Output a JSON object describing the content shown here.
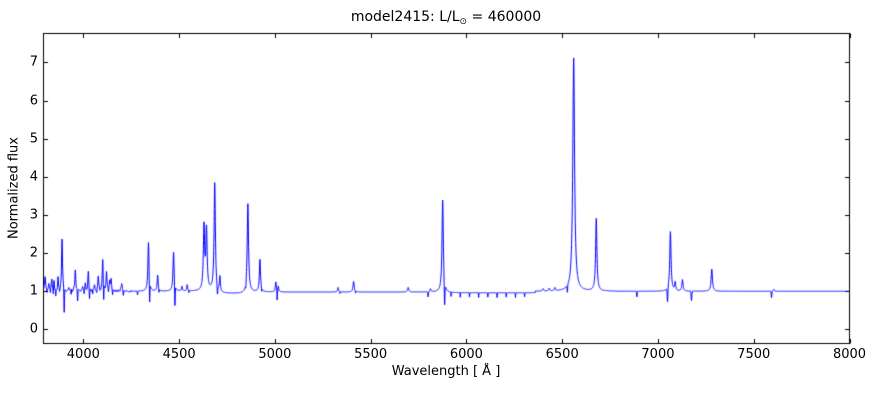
{
  "figure": {
    "title_text": "model2415: L/L",
    "title_sub": "⊙",
    "title_suffix": " = 460000"
  },
  "chart_data": {
    "type": "line",
    "title": "model2415: L/L⊙ = 460000",
    "xlabel": "Wavelength [ Å ]",
    "ylabel": "Normalized flux",
    "xlim": [
      3792,
      8000
    ],
    "ylim": [
      -0.37,
      7.76
    ],
    "xticks": [
      4000,
      4500,
      5000,
      5500,
      6000,
      6500,
      7000,
      7500,
      8000
    ],
    "yticks": [
      0,
      1,
      2,
      3,
      4,
      5,
      6,
      7
    ],
    "line_color": "#0000ff",
    "axis_color": "#000000",
    "background": "#ffffff",
    "continuum_level": 1.0,
    "baseline_segments": [
      [
        3792,
        4692,
        1.0
      ],
      [
        4692,
        4850,
        0.94
      ],
      [
        4850,
        5880,
        0.98
      ],
      [
        5880,
        6360,
        0.96
      ],
      [
        6360,
        8000,
        1.0
      ]
    ],
    "emission_lines": [
      [
        3800,
        1.4,
        3.0
      ],
      [
        3820,
        1.14,
        2.5
      ],
      [
        3835,
        1.28,
        2.5
      ],
      [
        3847,
        1.22,
        2.5
      ],
      [
        3868,
        1.32,
        2.5
      ],
      [
        3889,
        2.36,
        3.0
      ],
      [
        3924,
        1.12,
        2.5
      ],
      [
        3958,
        1.56,
        3.0
      ],
      [
        3996,
        1.14,
        2.5
      ],
      [
        4010,
        1.16,
        2.5
      ],
      [
        4026,
        1.52,
        3.0
      ],
      [
        4058,
        1.12,
        2.5
      ],
      [
        4078,
        1.36,
        2.5
      ],
      [
        4101,
        1.82,
        3.0
      ],
      [
        4121,
        1.46,
        2.5
      ],
      [
        4137,
        1.26,
        2.5
      ],
      [
        4145,
        1.28,
        2.5
      ],
      [
        4200,
        1.22,
        3.0
      ],
      [
        4340,
        2.28,
        3.5
      ],
      [
        4388,
        1.42,
        3.0
      ],
      [
        4471,
        2.02,
        3.5
      ],
      [
        4515,
        1.12,
        2.5
      ],
      [
        4542,
        1.16,
        2.5
      ],
      [
        4630,
        2.68,
        4.0
      ],
      [
        4643,
        2.58,
        4.0
      ],
      [
        4686,
        3.82,
        4.0
      ],
      [
        4713,
        1.4,
        3.0
      ],
      [
        4859,
        3.32,
        4.0
      ],
      [
        4922,
        1.85,
        3.5
      ],
      [
        5005,
        1.26,
        3.0
      ],
      [
        5018,
        1.14,
        2.5
      ],
      [
        5330,
        1.12,
        3.0
      ],
      [
        5411,
        1.28,
        3.5
      ],
      [
        5696,
        1.12,
        3.5
      ],
      [
        5812,
        1.08,
        3.0
      ],
      [
        5876,
        3.42,
        4.0
      ],
      [
        6400,
        1.06,
        3.0
      ],
      [
        6432,
        1.07,
        3.0
      ],
      [
        6462,
        1.08,
        3.0
      ],
      [
        6560,
        7.13,
        5.5
      ],
      [
        6678,
        2.9,
        4.0
      ],
      [
        7065,
        2.56,
        4.0
      ],
      [
        7090,
        1.22,
        3.0
      ],
      [
        7128,
        1.3,
        3.5
      ],
      [
        7281,
        1.58,
        4.0
      ],
      [
        7605,
        1.05,
        3.0
      ]
    ],
    "absorption_lines": [
      [
        3810,
        0.9,
        1.5
      ],
      [
        3828,
        0.88,
        1.5
      ],
      [
        3843,
        0.86,
        1.5
      ],
      [
        3856,
        0.8,
        1.5
      ],
      [
        3876,
        0.88,
        1.5
      ],
      [
        3900,
        0.34,
        2.0
      ],
      [
        3937,
        0.9,
        1.5
      ],
      [
        3970,
        0.7,
        2.0
      ],
      [
        4004,
        0.92,
        1.5
      ],
      [
        4032,
        0.66,
        2.0
      ],
      [
        4049,
        0.88,
        1.5
      ],
      [
        4070,
        0.92,
        1.5
      ],
      [
        4106,
        0.52,
        2.0
      ],
      [
        4131,
        0.94,
        1.5
      ],
      [
        4153,
        0.88,
        1.5
      ],
      [
        4171,
        0.94,
        1.5
      ],
      [
        4209,
        0.88,
        1.5
      ],
      [
        4283,
        0.9,
        2.0
      ],
      [
        4346,
        0.4,
        2.0
      ],
      [
        4395,
        0.9,
        1.5
      ],
      [
        4478,
        0.42,
        2.0
      ],
      [
        4551,
        0.94,
        1.5
      ],
      [
        4700,
        0.74,
        2.5
      ],
      [
        4848,
        0.88,
        2.0
      ],
      [
        4931,
        0.9,
        1.5
      ],
      [
        5012,
        0.72,
        1.5
      ],
      [
        5340,
        0.95,
        1.5
      ],
      [
        5421,
        0.94,
        1.5
      ],
      [
        5800,
        0.86,
        2.5
      ],
      [
        5886,
        0.35,
        2.5
      ],
      [
        5920,
        0.88,
        1.2
      ],
      [
        5968,
        0.87,
        1.2
      ],
      [
        6016,
        0.88,
        1.2
      ],
      [
        6064,
        0.87,
        1.2
      ],
      [
        6112,
        0.88,
        1.2
      ],
      [
        6160,
        0.87,
        1.2
      ],
      [
        6208,
        0.88,
        1.2
      ],
      [
        6256,
        0.87,
        1.2
      ],
      [
        6304,
        0.89,
        1.2
      ],
      [
        6527,
        0.8,
        2.0
      ],
      [
        6890,
        0.85,
        2.0
      ],
      [
        7050,
        0.62,
        2.5
      ],
      [
        7175,
        0.75,
        2.5
      ],
      [
        7593,
        0.83,
        2.0
      ]
    ],
    "noise": {
      "start": 3795,
      "end": 4280,
      "amplitude": 0.045,
      "cell_A": 4
    }
  }
}
